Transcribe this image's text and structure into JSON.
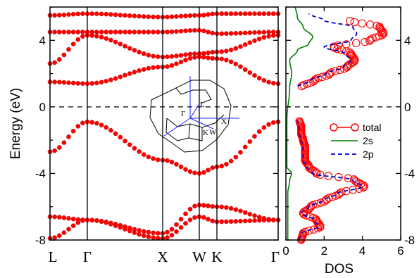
{
  "chart_data": [
    {
      "type": "line",
      "panel": "band-structure",
      "ylabel": "Energy (eV)",
      "ylim": [
        -8,
        6
      ],
      "yticks": [
        -8,
        -4,
        0,
        4
      ],
      "ytick_labels": [
        "-8",
        "-4",
        "0",
        "4"
      ],
      "high_symmetry_points": [
        "L",
        "Γ",
        "X",
        "W",
        "K",
        "Γ"
      ],
      "fermi_level": 0,
      "inset": {
        "name": "brillouin-zone",
        "labels": [
          "L",
          "Γ",
          "X",
          "K",
          "W"
        ]
      },
      "series": [
        {
          "color": "#ff0000",
          "values": [
            -2.7,
            -0.9,
            -3.2,
            -4.0,
            -3.6,
            -0.9
          ]
        },
        {
          "color": "#ff0000",
          "values": [
            -6.6,
            -6.8,
            -7.6,
            -5.9,
            -6.0,
            -6.8
          ]
        },
        {
          "color": "#ff0000",
          "values": [
            -7.9,
            -6.8,
            -7.9,
            -6.6,
            -6.9,
            -6.8
          ]
        },
        {
          "color": "#ff0000",
          "values": [
            1.5,
            1.4,
            2.4,
            3.0,
            2.9,
            1.4
          ]
        },
        {
          "color": "#ff0000",
          "values": [
            2.6,
            4.3,
            3.0,
            3.2,
            3.3,
            4.3
          ]
        },
        {
          "color": "#ff0000",
          "values": [
            4.5,
            4.5,
            4.5,
            4.6,
            4.4,
            4.5
          ]
        },
        {
          "color": "#ff0000",
          "values": [
            5.5,
            5.6,
            5.4,
            5.5,
            5.6,
            5.6
          ]
        }
      ]
    },
    {
      "type": "line",
      "panel": "density-of-states",
      "xlabel": "DOS",
      "xlim": [
        0,
        6
      ],
      "xticks": [
        0,
        2,
        4,
        6
      ],
      "xtick_labels": [
        "0",
        "2",
        "4",
        "6"
      ],
      "ylim": [
        -8,
        6
      ],
      "yticks": [
        -8,
        -4,
        0,
        4
      ],
      "ytick_labels": [
        "-8",
        "-4",
        "0",
        "4"
      ],
      "legend_position": "right",
      "series": [
        {
          "name": "total",
          "color": "#ff0000",
          "energy": [
            -8,
            -7.6,
            -7.2,
            -6.8,
            -6.4,
            -6.0,
            -5.6,
            -5.2,
            -4.8,
            -4.4,
            -4.0,
            -3.6,
            -3.2,
            -2.8,
            -2.4,
            -2.0,
            -1.6,
            -1.2,
            -0.8,
            1.2,
            1.6,
            2.0,
            2.4,
            2.8,
            3.2,
            3.6,
            4.0,
            4.4,
            4.8,
            5.2
          ],
          "values": [
            0.8,
            0.9,
            1.8,
            1.6,
            0.9,
            1.3,
            2.1,
            2.8,
            4.1,
            3.6,
            1.6,
            1.2,
            1.0,
            1.0,
            1.0,
            0.9,
            0.8,
            0.8,
            0.7,
            0.8,
            1.5,
            2.3,
            3.2,
            3.6,
            3.4,
            2.5,
            4.4,
            5.1,
            4.9,
            3.3
          ]
        },
        {
          "name": "2s",
          "color": "#008000",
          "energy": [
            -8,
            -6.8,
            -5.2,
            -4.4,
            -4.0,
            -3.6,
            -2.0,
            -0.8,
            1.2,
            2.0,
            2.8,
            3.4,
            3.8,
            4.2,
            4.8,
            5.4,
            6.0
          ],
          "values": [
            0.1,
            0.1,
            0.1,
            0.2,
            0.3,
            0.05,
            0.05,
            0.05,
            0.2,
            0.3,
            0.2,
            0.6,
            1.2,
            1.4,
            0.9,
            0.6,
            0.5
          ]
        },
        {
          "name": "2p",
          "color": "#0000cc",
          "energy": [
            -8,
            -7.6,
            -7.2,
            -6.8,
            -6.4,
            -6.0,
            -5.6,
            -5.2,
            -4.8,
            -4.4,
            -4.0,
            -3.6,
            -3.2,
            -2.8,
            -2.4,
            -2.0,
            -1.6,
            -1.2,
            -0.8,
            1.2,
            1.6,
            2.0,
            2.4,
            2.8,
            3.2,
            3.6,
            4.0,
            4.4,
            4.8,
            5.2,
            5.6
          ],
          "values": [
            0.7,
            0.8,
            1.7,
            1.5,
            0.8,
            1.2,
            2.0,
            2.7,
            4.0,
            3.5,
            1.4,
            1.1,
            0.9,
            0.9,
            0.9,
            0.8,
            0.7,
            0.7,
            0.6,
            0.6,
            1.3,
            2.1,
            3.0,
            3.4,
            3.1,
            2.0,
            3.4,
            3.7,
            3.5,
            2.0,
            1.2
          ]
        }
      ]
    }
  ]
}
